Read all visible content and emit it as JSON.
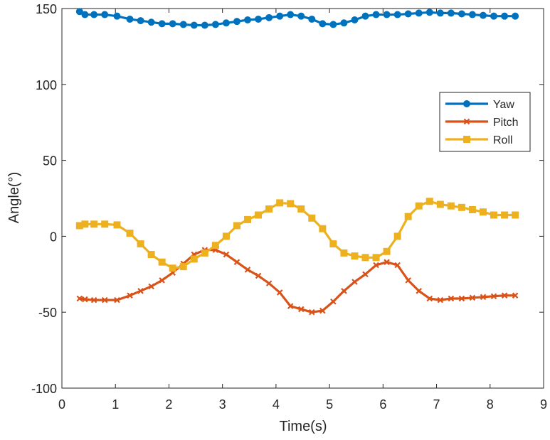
{
  "chart_data": {
    "type": "line",
    "title": "",
    "xlabel": "Time(s)",
    "ylabel": "Angle(°)",
    "xlim": [
      0,
      9
    ],
    "ylim": [
      -100,
      150
    ],
    "x_ticks": [
      0,
      1,
      2,
      3,
      4,
      5,
      6,
      7,
      8,
      9
    ],
    "y_ticks": [
      -100,
      -50,
      0,
      50,
      100,
      150
    ],
    "x_tick_labels": [
      "0",
      "1",
      "2",
      "3",
      "4",
      "5",
      "6",
      "7",
      "8",
      "9"
    ],
    "y_tick_labels": [
      "-100",
      "-50",
      "0",
      "50",
      "100",
      "150"
    ],
    "grid": false,
    "legend_position": "right-upper",
    "x": [
      0.33,
      0.43,
      0.6,
      0.8,
      1.03,
      1.27,
      1.47,
      1.67,
      1.87,
      2.07,
      2.27,
      2.47,
      2.67,
      2.87,
      3.07,
      3.27,
      3.47,
      3.67,
      3.87,
      4.07,
      4.27,
      4.47,
      4.67,
      4.87,
      5.07,
      5.27,
      5.47,
      5.67,
      5.87,
      6.07,
      6.27,
      6.47,
      6.67,
      6.87,
      7.07,
      7.27,
      7.47,
      7.67,
      7.87,
      8.07,
      8.27,
      8.47
    ],
    "series": [
      {
        "name": "Yaw",
        "color": "#0072BD",
        "marker": "circle",
        "values": [
          148,
          146,
          146,
          146,
          145,
          143,
          142,
          141,
          140,
          140,
          139.5,
          139,
          139,
          139.5,
          140.5,
          141.5,
          142.5,
          143,
          144,
          145,
          146,
          145,
          143,
          140,
          139.5,
          140.5,
          142.5,
          145,
          146,
          146,
          146,
          146.5,
          147,
          147.5,
          147,
          147,
          146.5,
          146,
          145.5,
          145,
          145,
          145
        ]
      },
      {
        "name": "Pitch",
        "color": "#D95319",
        "marker": "x",
        "values": [
          -41,
          -41.5,
          -42,
          -42,
          -42,
          -39,
          -36,
          -33,
          -29,
          -24,
          -18,
          -12,
          -9,
          -9,
          -12,
          -17,
          -22,
          -26,
          -31,
          -37,
          -46,
          -48,
          -50,
          -49,
          -43,
          -36,
          -30,
          -25,
          -19,
          -17,
          -19,
          -29,
          -36,
          -41,
          -42,
          -41,
          -41,
          -40.5,
          -40,
          -39.5,
          -39,
          -39
        ]
      },
      {
        "name": "Roll",
        "color": "#EDB120",
        "marker": "square",
        "values": [
          7,
          8,
          8,
          8,
          7.5,
          2,
          -5,
          -12,
          -17,
          -21,
          -20,
          -15,
          -11,
          -6,
          0,
          7,
          11,
          14,
          18,
          22,
          21.5,
          18,
          12,
          5,
          -5,
          -11,
          -13,
          -14,
          -14,
          -10,
          0,
          13,
          20,
          23,
          21,
          20,
          19,
          17.5,
          16,
          14,
          14,
          14
        ]
      }
    ]
  }
}
